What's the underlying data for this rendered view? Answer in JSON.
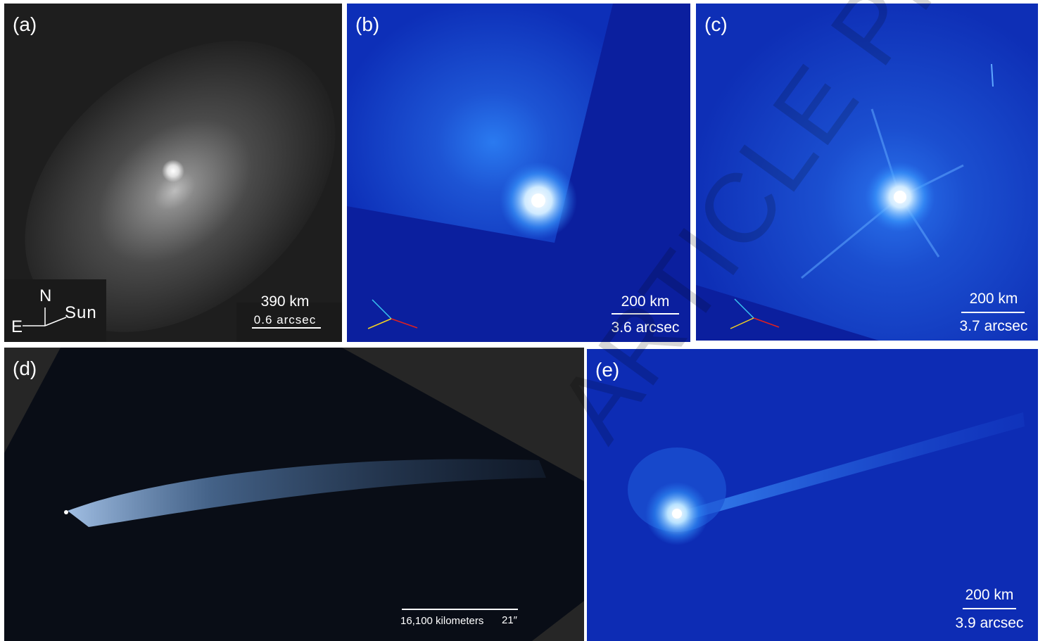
{
  "panels": {
    "a": {
      "label": "(a)",
      "scale_top": "390 km",
      "scale_bottom": "0.6 arcsec",
      "compass": {
        "north": "N",
        "east": "E",
        "sun": "Sun"
      }
    },
    "b": {
      "label": "(b)",
      "scale_top": "200 km",
      "scale_bottom": "3.6 arcsec"
    },
    "c": {
      "label": "(c)",
      "scale_top": "200 km",
      "scale_bottom": "3.7 arcsec"
    },
    "d": {
      "label": "(d)",
      "scale_text": "16,100 kilometers",
      "scale_angle": "21″"
    },
    "e": {
      "label": "(e)",
      "scale_top": "200 km",
      "scale_bottom": "3.9 arcsec"
    }
  },
  "watermark": "ARTICLE PREVIEW",
  "colors": {
    "bg_blue": "#0b24a8",
    "gray_bg": "#2a2a2a",
    "dark_bg": "#0a0f1a"
  }
}
